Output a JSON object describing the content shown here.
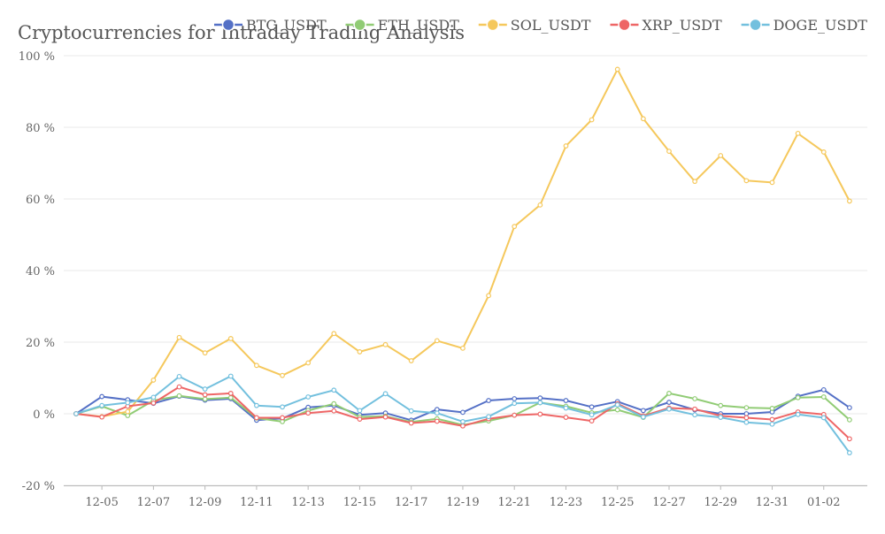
{
  "chart_data": {
    "type": "line",
    "title": "Cryptocurrencies for Intraday Trading Analysis",
    "xlabel": "",
    "ylabel": "",
    "x": [
      "12-04",
      "12-05",
      "12-06",
      "12-07",
      "12-08",
      "12-09",
      "12-10",
      "12-11",
      "12-12",
      "12-13",
      "12-14",
      "12-15",
      "12-16",
      "12-17",
      "12-18",
      "12-19",
      "12-20",
      "12-21",
      "12-22",
      "12-23",
      "12-24",
      "12-25",
      "12-26",
      "12-27",
      "12-28",
      "12-29",
      "12-30",
      "12-31",
      "01-01",
      "01-02",
      "01-03"
    ],
    "x_tick_labels": [
      "12-05",
      "12-07",
      "12-09",
      "12-11",
      "12-13",
      "12-15",
      "12-17",
      "12-19",
      "12-21",
      "12-23",
      "12-25",
      "12-27",
      "12-29",
      "12-31",
      "01-02"
    ],
    "ylim": [
      -20,
      100
    ],
    "y_ticks": [
      -20,
      0,
      20,
      40,
      60,
      80,
      100
    ],
    "y_tick_labels": [
      "-20 %",
      "0 %",
      "20 %",
      "40 %",
      "60 %",
      "80 %",
      "100 %"
    ],
    "grid": true,
    "legend_position": "top",
    "series": [
      {
        "name": "BTC_USDT",
        "color": "#5470c6",
        "values": [
          0,
          4.8,
          3.9,
          2.9,
          4.9,
          3.8,
          4.2,
          -1.8,
          -1.3,
          1.8,
          2.3,
          -0.3,
          0.2,
          -1.8,
          1.2,
          0.4,
          3.7,
          4.2,
          4.4,
          3.7,
          1.9,
          3.4,
          0.9,
          3.2,
          1.1,
          0,
          0,
          0.5,
          4.9,
          6.7,
          1.7
        ]
      },
      {
        "name": "ETH_USDT",
        "color": "#91cc75",
        "values": [
          0,
          2.1,
          -0.5,
          3.7,
          5.0,
          4.1,
          4.5,
          -1.2,
          -2.2,
          0.9,
          2.8,
          -0.9,
          -0.7,
          -2.3,
          -1.4,
          -3.1,
          -2.0,
          -0.4,
          3.1,
          2.1,
          0.3,
          1.1,
          -1.0,
          5.7,
          4.2,
          2.3,
          1.7,
          1.5,
          4.5,
          4.7,
          -1.7
        ]
      },
      {
        "name": "SOL_USDT",
        "color": "#f5c85c",
        "values": [
          0,
          -0.8,
          0.6,
          9.4,
          21.3,
          17.0,
          21.0,
          13.5,
          10.7,
          14.2,
          22.4,
          17.3,
          19.3,
          14.8,
          20.4,
          18.3,
          33.0,
          52.3,
          58.3,
          74.8,
          82.1,
          96.2,
          82.4,
          73.3,
          64.9,
          72.1,
          65.1,
          64.6,
          78.3,
          73.1,
          59.4
        ]
      },
      {
        "name": "XRP_USDT",
        "color": "#ee6666",
        "values": [
          0,
          -0.9,
          2.1,
          3.0,
          7.5,
          5.3,
          5.7,
          -1.1,
          -1.1,
          0.2,
          0.8,
          -1.5,
          -0.9,
          -2.6,
          -2.1,
          -3.4,
          -1.4,
          -0.4,
          -0.1,
          -1.0,
          -2.0,
          2.8,
          -0.6,
          1.6,
          1.3,
          -0.6,
          -1.1,
          -1.6,
          0.5,
          -0.2,
          -7.0
        ]
      },
      {
        "name": "DOGE_USDT",
        "color": "#73c0de",
        "values": [
          0,
          2.3,
          3.1,
          4.6,
          10.4,
          6.9,
          10.5,
          2.3,
          1.9,
          4.7,
          6.6,
          0.9,
          5.6,
          0.8,
          0.2,
          -2.2,
          -0.8,
          2.9,
          3.1,
          1.6,
          -0.3,
          2.5,
          -0.9,
          1.3,
          -0.3,
          -1.0,
          -2.4,
          -2.9,
          -0.2,
          -1.1,
          -10.9
        ]
      }
    ]
  }
}
